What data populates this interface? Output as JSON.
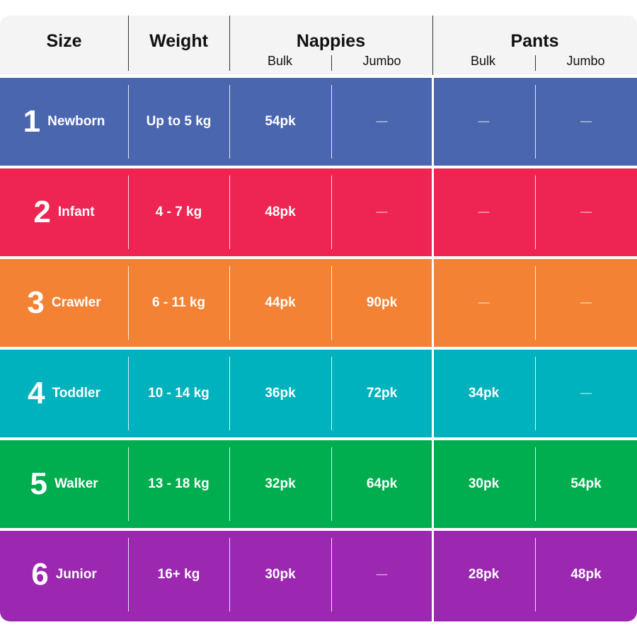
{
  "header": {
    "size": "Size",
    "weight": "Weight",
    "nappies": "Nappies",
    "pants": "Pants",
    "bulk": "Bulk",
    "jumbo": "Jumbo"
  },
  "rows": [
    {
      "num": "1",
      "name": "Newborn",
      "weight": "Up to 5 kg",
      "nappies_bulk": "54pk",
      "nappies_jumbo": "—",
      "pants_bulk": "—",
      "pants_jumbo": "—",
      "color": "#4A66AE"
    },
    {
      "num": "2",
      "name": "Infant",
      "weight": "4 - 7 kg",
      "nappies_bulk": "48pk",
      "nappies_jumbo": "—",
      "pants_bulk": "—",
      "pants_jumbo": "—",
      "color": "#EE2553"
    },
    {
      "num": "3",
      "name": "Crawler",
      "weight": "6 - 11 kg",
      "nappies_bulk": "44pk",
      "nappies_jumbo": "90pk",
      "pants_bulk": "—",
      "pants_jumbo": "—",
      "color": "#F48234"
    },
    {
      "num": "4",
      "name": "Toddler",
      "weight": "10 - 14 kg",
      "nappies_bulk": "36pk",
      "nappies_jumbo": "72pk",
      "pants_bulk": "34pk",
      "pants_jumbo": "—",
      "color": "#00B2BD"
    },
    {
      "num": "5",
      "name": "Walker",
      "weight": "13 - 18 kg",
      "nappies_bulk": "32pk",
      "nappies_jumbo": "64pk",
      "pants_bulk": "30pk",
      "pants_jumbo": "54pk",
      "color": "#00AD4F"
    },
    {
      "num": "6",
      "name": "Junior",
      "weight": "16+ kg",
      "nappies_bulk": "30pk",
      "nappies_jumbo": "—",
      "pants_bulk": "28pk",
      "pants_jumbo": "48pk",
      "color": "#9C27B0"
    }
  ]
}
